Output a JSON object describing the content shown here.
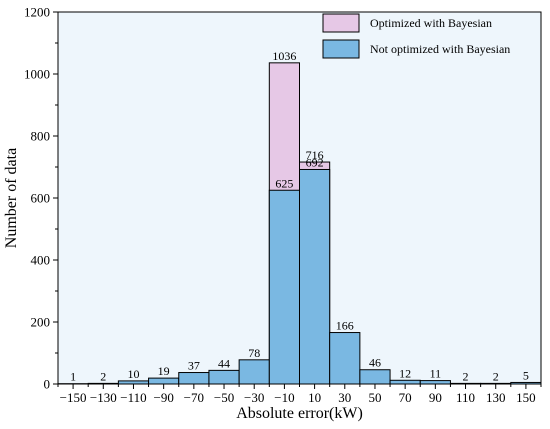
{
  "chart_data": {
    "type": "bar",
    "xlabel": "Absolute error(kW)",
    "ylabel": "Number of data",
    "xlim": [
      -160,
      160
    ],
    "ylim": [
      0,
      1200
    ],
    "x_ticks": [
      -150,
      -130,
      -110,
      -90,
      -70,
      -50,
      -30,
      -10,
      10,
      30,
      50,
      70,
      90,
      110,
      130,
      150
    ],
    "x_tick_labels": [
      "−150",
      "−130",
      "−110",
      "−90",
      "−70",
      "−50",
      "−30",
      "−10",
      "10",
      "30",
      "50",
      "70",
      "90",
      "110",
      "130",
      "150"
    ],
    "y_ticks": [
      0,
      200,
      400,
      600,
      800,
      1000,
      1200
    ],
    "y_tick_labels": [
      "0",
      "200",
      "400",
      "600",
      "800",
      "1000",
      "1200"
    ],
    "bin_width": 20,
    "x": [
      -150,
      -130,
      -110,
      -90,
      -70,
      -50,
      -30,
      -10,
      10,
      30,
      50,
      70,
      90,
      110,
      130,
      150
    ],
    "series": [
      {
        "name": "Optimized with Bayesian",
        "color": "#e6c8e6",
        "values": [
          null,
          null,
          null,
          null,
          null,
          null,
          null,
          1036,
          716,
          null,
          null,
          null,
          null,
          null,
          null,
          null
        ]
      },
      {
        "name": "Not optimized with Bayesian",
        "color": "#7ab8e2",
        "values": [
          1,
          2,
          10,
          19,
          37,
          44,
          78,
          625,
          692,
          166,
          46,
          12,
          11,
          2,
          2,
          5
        ]
      }
    ],
    "labels": [
      {
        "x": -150,
        "y": 1,
        "text": "1"
      },
      {
        "x": -130,
        "y": 2,
        "text": "2"
      },
      {
        "x": -110,
        "y": 10,
        "text": "10"
      },
      {
        "x": -90,
        "y": 19,
        "text": "19"
      },
      {
        "x": -70,
        "y": 37,
        "text": "37"
      },
      {
        "x": -50,
        "y": 44,
        "text": "44"
      },
      {
        "x": -30,
        "y": 78,
        "text": "78"
      },
      {
        "x": -10,
        "y": 1036,
        "text": "1036"
      },
      {
        "x": -10,
        "y": 625,
        "text": "625"
      },
      {
        "x": 10,
        "y": 716,
        "text": "716"
      },
      {
        "x": 10,
        "y": 692,
        "text": "692"
      },
      {
        "x": 30,
        "y": 166,
        "text": "166"
      },
      {
        "x": 50,
        "y": 46,
        "text": "46"
      },
      {
        "x": 70,
        "y": 12,
        "text": "12"
      },
      {
        "x": 90,
        "y": 11,
        "text": "11"
      },
      {
        "x": 110,
        "y": 2,
        "text": "2"
      },
      {
        "x": 130,
        "y": 2,
        "text": "2"
      },
      {
        "x": 150,
        "y": 5,
        "text": "5"
      }
    ],
    "legend_position": "top-right",
    "grid": false,
    "background": "#eef6fc"
  }
}
